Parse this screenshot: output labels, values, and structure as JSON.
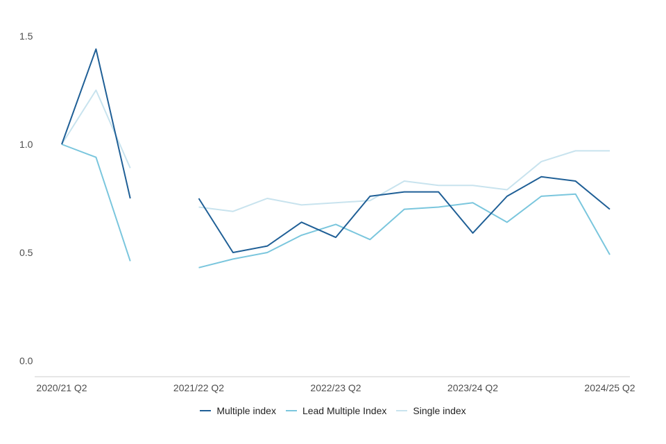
{
  "chart_data": {
    "type": "line",
    "x": [
      "2020/21 Q2",
      "2020/21 Q3",
      "2020/21 Q4",
      "2021/22 Q1",
      "2021/22 Q2",
      "2021/22 Q3",
      "2021/22 Q4",
      "2022/23 Q1",
      "2022/23 Q2",
      "2022/23 Q3",
      "2022/23 Q4",
      "2023/24 Q1",
      "2023/24 Q2",
      "2023/24 Q3",
      "2023/24 Q4",
      "2024/25 Q1",
      "2024/25 Q2"
    ],
    "x_tick_labels": [
      "2020/21 Q2",
      "2021/22 Q2",
      "2022/23 Q2",
      "2023/24 Q2",
      "2024/25 Q2"
    ],
    "y_tick_labels": [
      "0.0",
      "0.5",
      "1.0",
      "1.5"
    ],
    "ylim": [
      0,
      1.5
    ],
    "grid": false,
    "legend_position": "bottom",
    "series": [
      {
        "name": "Multiple index",
        "color": "#1f5f96",
        "values": [
          1.0,
          1.44,
          0.75,
          null,
          0.75,
          0.5,
          0.53,
          0.64,
          0.57,
          0.76,
          0.78,
          0.78,
          0.59,
          0.76,
          0.85,
          0.83,
          0.7
        ]
      },
      {
        "name": "Lead Multiple Index",
        "color": "#7ac6dd",
        "values": [
          1.0,
          0.94,
          0.46,
          null,
          0.43,
          0.47,
          0.5,
          0.58,
          0.63,
          0.56,
          0.7,
          0.71,
          0.73,
          0.64,
          0.76,
          0.77,
          0.49
        ]
      },
      {
        "name": "Single index",
        "color": "#c8e3ee",
        "values": [
          1.0,
          1.25,
          0.89,
          null,
          0.71,
          0.69,
          0.75,
          0.72,
          0.73,
          0.74,
          0.83,
          0.81,
          0.81,
          0.79,
          0.92,
          0.97,
          0.97
        ]
      }
    ]
  }
}
